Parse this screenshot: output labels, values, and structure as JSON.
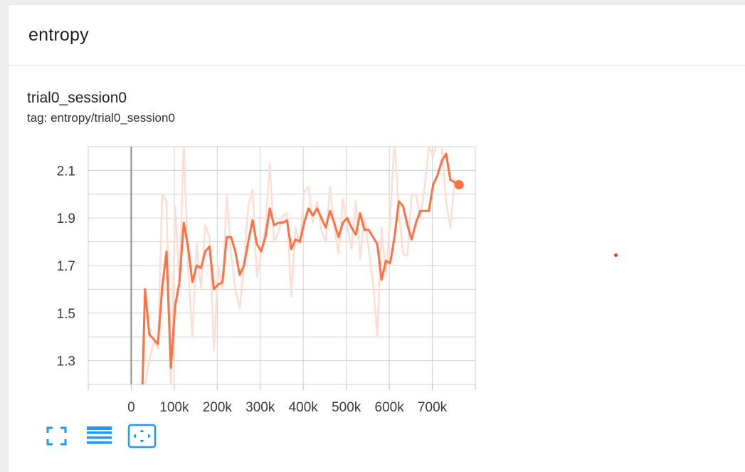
{
  "card": {
    "group_title": "entropy",
    "run_title": "trial0_session0",
    "tag_line": "tag: entropy/trial0_session0"
  },
  "colors": {
    "smoothed_line": "#ff7043",
    "raw_line": "#ffddd4",
    "grid": "#cfcfcf",
    "zero_axis": "#8a8a8a",
    "toolbar_icon": "#2196f3",
    "stray_dot": "#e53935"
  },
  "toolbar": {
    "icons": [
      "fullscreen-icon",
      "toggle-log-scale-icon",
      "fit-domain-icon"
    ]
  },
  "chart_data": {
    "type": "line",
    "title": "trial0_session0",
    "subtitle": "tag: entropy/trial0_session0",
    "xlabel": "",
    "ylabel": "",
    "xlim": [
      -100000,
      800000
    ],
    "ylim": [
      1.2,
      2.2
    ],
    "x_ticks": [
      0,
      100000,
      200000,
      300000,
      400000,
      500000,
      600000,
      700000
    ],
    "x_tick_labels": [
      "0",
      "100k",
      "200k",
      "300k",
      "400k",
      "500k",
      "600k",
      "700k"
    ],
    "y_ticks": [
      1.3,
      1.5,
      1.7,
      1.9,
      2.1
    ],
    "y_tick_labels": [
      "1.3",
      "1.5",
      "1.7",
      "1.9",
      "2.1"
    ],
    "grid": true,
    "series": [
      {
        "role": "raw",
        "x": [
          26000,
          32000,
          42000,
          52000,
          62000,
          72000,
          82000,
          92000,
          102000,
          112000,
          122000,
          132000,
          142000,
          152000,
          162000,
          172000,
          182000,
          192000,
          202000,
          212000,
          222000,
          232000,
          242000,
          252000,
          262000,
          272000,
          282000,
          292000,
          302000,
          312000,
          322000,
          332000,
          342000,
          352000,
          362000,
          372000,
          382000,
          392000,
          402000,
          412000,
          422000,
          432000,
          442000,
          452000,
          462000,
          472000,
          482000,
          492000,
          502000,
          512000,
          522000,
          532000,
          542000,
          552000,
          562000,
          572000,
          582000,
          592000,
          602000,
          612000,
          622000,
          632000,
          642000,
          652000,
          662000,
          672000,
          682000,
          692000,
          702000,
          712000,
          722000,
          732000,
          742000,
          752000,
          762000
        ],
        "values": [
          1.16,
          1.2,
          1.3,
          1.38,
          1.35,
          2.0,
          1.97,
          1.15,
          1.95,
          1.62,
          2.22,
          1.7,
          1.4,
          1.8,
          1.6,
          1.87,
          1.82,
          1.34,
          1.7,
          1.6,
          2.0,
          1.75,
          1.6,
          1.52,
          1.7,
          1.95,
          2.02,
          1.65,
          1.75,
          1.86,
          2.13,
          1.8,
          1.84,
          1.91,
          1.92,
          1.57,
          1.86,
          1.79,
          2.01,
          2.03,
          1.88,
          1.97,
          1.85,
          1.8,
          2.03,
          1.86,
          1.75,
          1.98,
          1.87,
          1.77,
          1.97,
          1.73,
          1.9,
          1.77,
          1.63,
          1.4,
          1.86,
          1.66,
          1.9,
          2.23,
          1.93,
          1.75,
          1.74,
          2.0,
          2.0,
          1.9,
          2.03,
          2.2,
          2.16,
          2.22,
          2.2,
          1.97,
          1.86,
          2.06,
          2.05
        ]
      },
      {
        "role": "smoothed",
        "x": [
          26000,
          32000,
          42000,
          52000,
          62000,
          72000,
          82000,
          92000,
          102000,
          112000,
          122000,
          132000,
          142000,
          152000,
          162000,
          172000,
          182000,
          192000,
          202000,
          212000,
          222000,
          232000,
          242000,
          252000,
          262000,
          272000,
          282000,
          292000,
          302000,
          312000,
          322000,
          332000,
          342000,
          352000,
          362000,
          372000,
          382000,
          392000,
          402000,
          412000,
          422000,
          432000,
          442000,
          452000,
          462000,
          472000,
          482000,
          492000,
          502000,
          512000,
          522000,
          532000,
          542000,
          552000,
          562000,
          572000,
          582000,
          592000,
          602000,
          612000,
          622000,
          632000,
          642000,
          652000,
          662000,
          672000,
          682000,
          692000,
          702000,
          712000,
          722000,
          732000,
          742000,
          752000,
          762000
        ],
        "values": [
          1.2,
          1.6,
          1.41,
          1.39,
          1.37,
          1.61,
          1.76,
          1.27,
          1.53,
          1.63,
          1.88,
          1.78,
          1.63,
          1.7,
          1.69,
          1.76,
          1.78,
          1.6,
          1.62,
          1.63,
          1.82,
          1.82,
          1.76,
          1.66,
          1.7,
          1.8,
          1.89,
          1.79,
          1.76,
          1.82,
          1.94,
          1.87,
          1.88,
          1.88,
          1.89,
          1.77,
          1.81,
          1.8,
          1.88,
          1.94,
          1.91,
          1.94,
          1.9,
          1.86,
          1.93,
          1.88,
          1.82,
          1.88,
          1.9,
          1.86,
          1.83,
          1.92,
          1.85,
          1.85,
          1.82,
          1.79,
          1.64,
          1.72,
          1.71,
          1.82,
          1.97,
          1.95,
          1.87,
          1.81,
          1.88,
          1.93,
          1.93,
          1.93,
          2.04,
          2.08,
          2.14,
          2.17,
          2.06,
          2.05,
          2.04
        ]
      }
    ]
  }
}
